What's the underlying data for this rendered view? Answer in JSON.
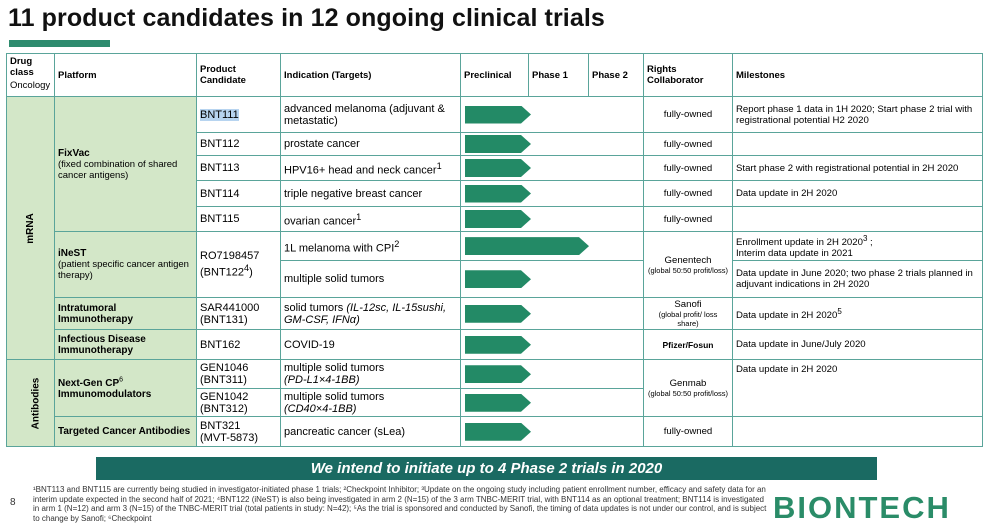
{
  "title": "11 product candidates in 12 ongoing clinical trials",
  "headers": {
    "drug_class": "Drug class",
    "oncology": "Oncology",
    "platform": "Platform",
    "candidate": "Product Candidate",
    "indication": "Indication (Targets)",
    "preclinical": "Preclinical",
    "phase1": "Phase 1",
    "phase2": "Phase 2",
    "rights": "Rights Collaborator",
    "milestones": "Milestones"
  },
  "classes": {
    "mrna": "mRNA",
    "antibodies": "Antibodies"
  },
  "platforms": {
    "fixvac": {
      "name": "FixVac",
      "sub": "(fixed combination of shared cancer antigens)"
    },
    "inest": {
      "name": "iNeST",
      "sub": "(patient specific cancer antigen therapy)"
    },
    "intratumoral": {
      "name": "Intratumoral Immunotherapy"
    },
    "infectious": {
      "name": "Infectious Disease Immunotherapy"
    },
    "nextgen": {
      "name": "Next-Gen CP",
      "sup": "6",
      "name2": "Immunomodulators"
    },
    "targeted": {
      "name": "Targeted Cancer Antibodies"
    }
  },
  "rows": [
    {
      "candidate": "BNT111",
      "indication": "advanced melanoma (adjuvant & metastatic)",
      "rights": "fully-owned",
      "milestone": "Report phase 1 data in 1H 2020; Start phase 2 trial with registrational potential H2 2020",
      "progress": 0.38
    },
    {
      "candidate": "BNT112",
      "indication": "prostate cancer",
      "rights": "fully-owned",
      "milestone": "",
      "progress": 0.38
    },
    {
      "candidate": "BNT113",
      "indication": "HPV16+ head and neck cancer",
      "ind_sup": "1",
      "rights": "fully-owned",
      "milestone": "Start phase 2 with registrational potential in 2H 2020",
      "progress": 0.38
    },
    {
      "candidate": "BNT114",
      "indication": "triple negative breast cancer",
      "rights": "fully-owned",
      "milestone": "Data update in 2H 2020",
      "progress": 0.38
    },
    {
      "candidate": "BNT115",
      "indication": "ovarian cancer",
      "ind_sup": "1",
      "rights": "fully-owned",
      "milestone": "",
      "progress": 0.38
    },
    {
      "candidate": "RO7198457",
      "candidate2": "(BNT122",
      "cand_sup": "4",
      "cand_end": ")",
      "indication": "1L melanoma with CPI",
      "ind_sup": "2",
      "rights": "Genentech",
      "rights_sub": "(global 50:50 profit/loss)",
      "milestone": "Enrollment update in 2H 2020",
      "mile_sup": "3",
      "mile_end": " ;",
      "milestone2": "Interim data update in 2021",
      "progress": 0.71
    },
    {
      "indication": "multiple solid tumors",
      "milestone": "Data update in June 2020; two phase 2 trials planned in adjuvant indications in 2H 2020",
      "progress": 0.38
    },
    {
      "candidate": "SAR441000",
      "candidate2": "(BNT131)",
      "indication": "solid tumors",
      "ind_italic": "(IL-12sc, IL-15sushi, GM-CSF, IFNα)",
      "rights": "Sanofi",
      "rights_sub": "(global profit/ loss share)",
      "milestone": "Data update in 2H 2020",
      "mile_sup": "5",
      "progress": 0.38
    },
    {
      "candidate": "BNT162",
      "indication": "COVID-19",
      "rights": "Pfizer/Fosun",
      "milestone": "Data update in June/July 2020",
      "progress": 0.38
    },
    {
      "candidate": "GEN1046",
      "candidate2": "(BNT311)",
      "indication": "multiple solid tumors",
      "ind_italic": "(PD-L1×4-1BB)",
      "rights": "Genmab",
      "rights_sub": "(global 50:50 profit/loss)",
      "milestone": "Data update in 2H 2020",
      "progress": 0.38
    },
    {
      "candidate": "GEN1042",
      "candidate2": "(BNT312)",
      "indication": "multiple solid tumors",
      "ind_italic": "(CD40×4-1BB)",
      "milestone": "",
      "progress": 0.38
    },
    {
      "candidate": "BNT321",
      "candidate2": "(MVT-5873)",
      "indication": "pancreatic cancer (sLea)",
      "rights": "fully-owned",
      "milestone": "",
      "progress": 0.38
    }
  ],
  "banner": "We intend to initiate up to 4 Phase 2 trials in 2020",
  "page_number": "8",
  "footnote": "¹BNT113 and BNT115 are currently being studied in investigator-initiated phase 1 trials; ²Checkpoint Inhibitor; ³Update on the ongoing study including patient enrollment number, efficacy and safety data for an interim update expected in the second half of 2021; ⁴BNT122 (iNeST) is also being investigated in arm 2 (N=15) of the 3 arm TNBC-MERIT trial, with BNT114 as an optional treatment; BNT114 is investigated in arm 1 (N=12) and arm 3 (N=15) of the TNBC-MERIT trial (total patients in study: N=42); ⁵As the trial is sponsored and conducted by Sanofi, the timing of data updates is not under our control, and is subject to change by Sanofi; ⁶Checkpoint",
  "logo": "BIONTECH",
  "colors": {
    "accent": "#238a66",
    "banner": "#1a6a62",
    "platform_bg": "#d3e7c8",
    "border": "#5aa49a"
  }
}
